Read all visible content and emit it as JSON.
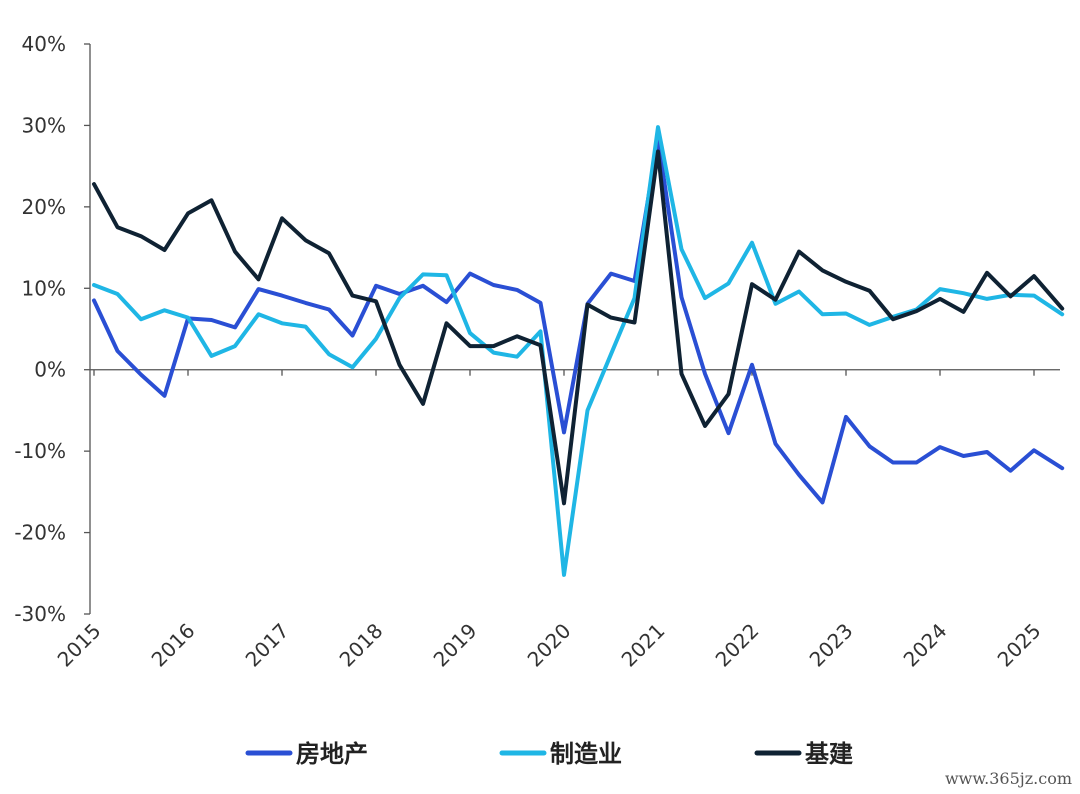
{
  "chart_data": {
    "type": "line",
    "title": "",
    "xlabel": "",
    "ylabel": "",
    "ylim": [
      -30,
      40
    ],
    "yticks": [
      40,
      30,
      20,
      10,
      0,
      -10,
      -20,
      -30
    ],
    "ytick_labels": [
      "40%",
      "30%",
      "20%",
      "10%",
      "0%",
      "-10%",
      "-20%",
      "-30%"
    ],
    "xlim": [
      2015,
      2025.3
    ],
    "xticks": [
      2015,
      2016,
      2017,
      2018,
      2019,
      2020,
      2021,
      2022,
      2023,
      2024,
      2025
    ],
    "xtick_labels": [
      "2015",
      "2016",
      "2017",
      "2018",
      "2019",
      "2020",
      "2021",
      "2022",
      "2023",
      "2024",
      "2025"
    ],
    "grid": false,
    "legend_position": "bottom",
    "x": [
      2015.0,
      2015.25,
      2015.5,
      2015.75,
      2016.0,
      2016.25,
      2016.5,
      2016.75,
      2017.0,
      2017.25,
      2017.5,
      2017.75,
      2018.0,
      2018.25,
      2018.5,
      2018.75,
      2019.0,
      2019.25,
      2019.5,
      2019.75,
      2020.0,
      2020.25,
      2020.5,
      2020.75,
      2021.0,
      2021.25,
      2021.5,
      2021.75,
      2022.0,
      2022.25,
      2022.5,
      2022.75,
      2023.0,
      2023.25,
      2023.5,
      2023.75,
      2024.0,
      2024.25,
      2024.5,
      2024.75,
      2025.0,
      2025.3
    ],
    "series": [
      {
        "name": "房地产",
        "color": "#2a4fd4",
        "values": [
          8.5,
          2.3,
          -0.6,
          -3.2,
          6.3,
          6.1,
          5.2,
          9.9,
          9.1,
          8.2,
          7.4,
          4.2,
          10.3,
          9.3,
          10.3,
          8.3,
          11.8,
          10.4,
          9.8,
          8.2,
          -7.7,
          8.1,
          11.8,
          10.9,
          28.3,
          8.9,
          -0.5,
          -7.8,
          0.6,
          -9.1,
          -12.9,
          -16.3,
          -5.8,
          -9.4,
          -11.4,
          -11.4,
          -9.5,
          -10.6,
          -10.1,
          -12.4,
          -9.9,
          -12.1
        ]
      },
      {
        "name": "制造业",
        "color": "#1fb6e5",
        "values": [
          10.4,
          9.3,
          6.2,
          7.3,
          6.4,
          1.7,
          2.9,
          6.8,
          5.7,
          5.3,
          1.9,
          0.3,
          3.8,
          8.8,
          11.7,
          11.6,
          4.5,
          2.1,
          1.6,
          4.7,
          -25.2,
          -5.0,
          1.9,
          8.8,
          29.8,
          14.8,
          8.8,
          10.6,
          15.6,
          8.1,
          9.6,
          6.8,
          6.9,
          5.5,
          6.5,
          7.4,
          9.9,
          9.4,
          8.7,
          9.2,
          9.1,
          6.8
        ]
      },
      {
        "name": "基建",
        "color": "#0f2233",
        "values": [
          22.8,
          17.5,
          16.4,
          14.7,
          19.2,
          20.8,
          14.5,
          11.1,
          18.6,
          15.9,
          14.3,
          9.1,
          8.4,
          0.6,
          -4.2,
          5.7,
          2.9,
          2.9,
          4.1,
          3.0,
          -16.4,
          8.0,
          6.4,
          5.8,
          26.8,
          -0.5,
          -6.9,
          -3.0,
          10.5,
          8.6,
          14.5,
          12.2,
          10.8,
          9.7,
          6.2,
          7.2,
          8.7,
          7.1,
          11.9,
          9.0,
          11.5,
          7.5
        ]
      }
    ]
  },
  "watermark": "www.365jz.com"
}
